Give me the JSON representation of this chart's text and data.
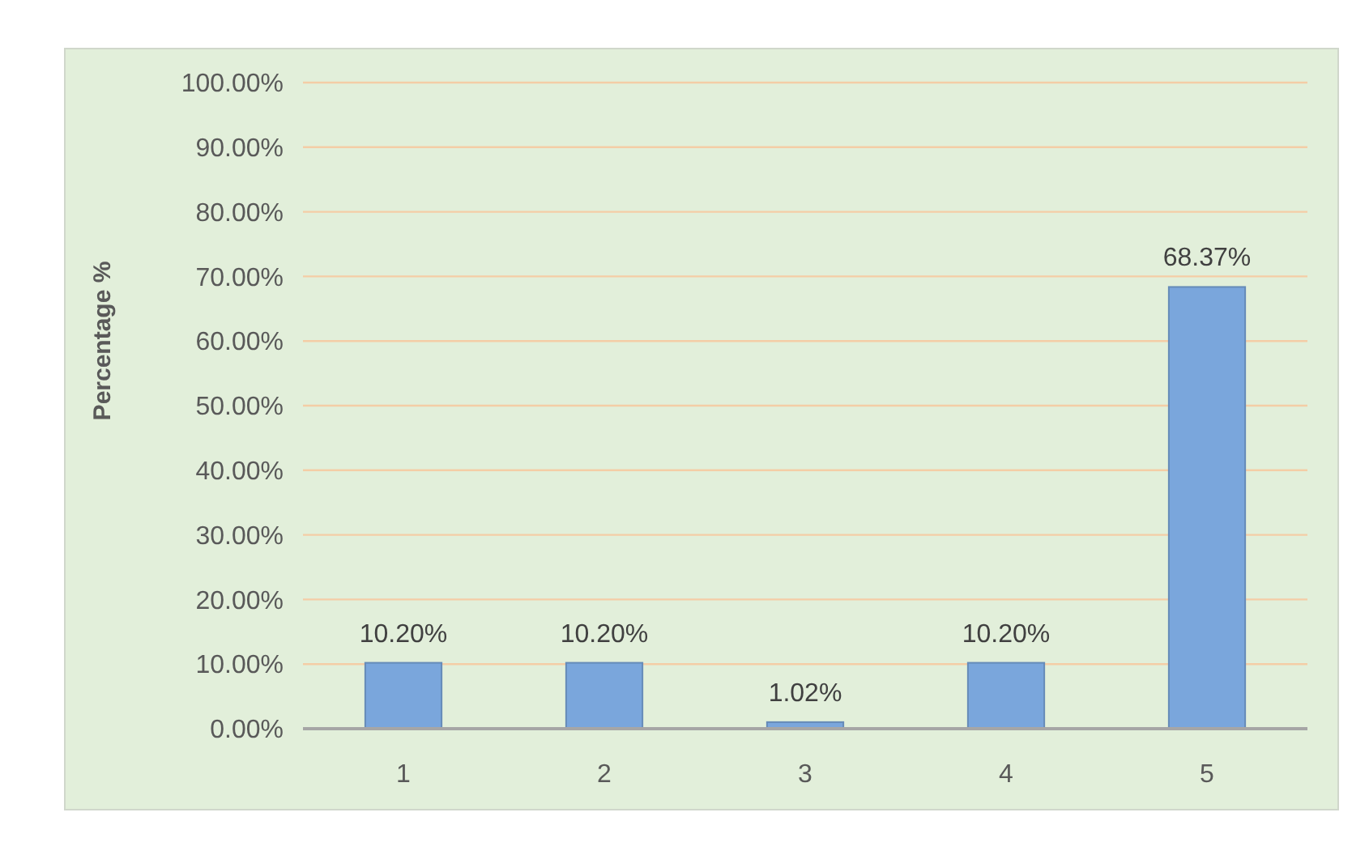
{
  "chart_data": {
    "type": "bar",
    "ylabel": "Percentage %",
    "categories": [
      "1",
      "2",
      "3",
      "4",
      "5"
    ],
    "values": [
      10.2,
      10.2,
      1.02,
      10.2,
      68.37
    ],
    "color": "#7aa6dc",
    "value_labels": [
      "10.20%",
      "10.20%",
      "1.02%",
      "10.20%",
      "68.37%"
    ],
    "ylim": [
      0,
      100
    ],
    "yticks": [
      {
        "value": 0,
        "label": "0.00%"
      },
      {
        "value": 10,
        "label": "10.00%"
      },
      {
        "value": 20,
        "label": "20.00%"
      },
      {
        "value": 30,
        "label": "30.00%"
      },
      {
        "value": 40,
        "label": "40.00%"
      },
      {
        "value": 50,
        "label": "50.00%"
      },
      {
        "value": 60,
        "label": "60.00%"
      },
      {
        "value": 70,
        "label": "70.00%"
      },
      {
        "value": 80,
        "label": "80.00%"
      },
      {
        "value": 90,
        "label": "90.00%"
      },
      {
        "value": 100,
        "label": "100.00%"
      }
    ],
    "grid": "y"
  }
}
